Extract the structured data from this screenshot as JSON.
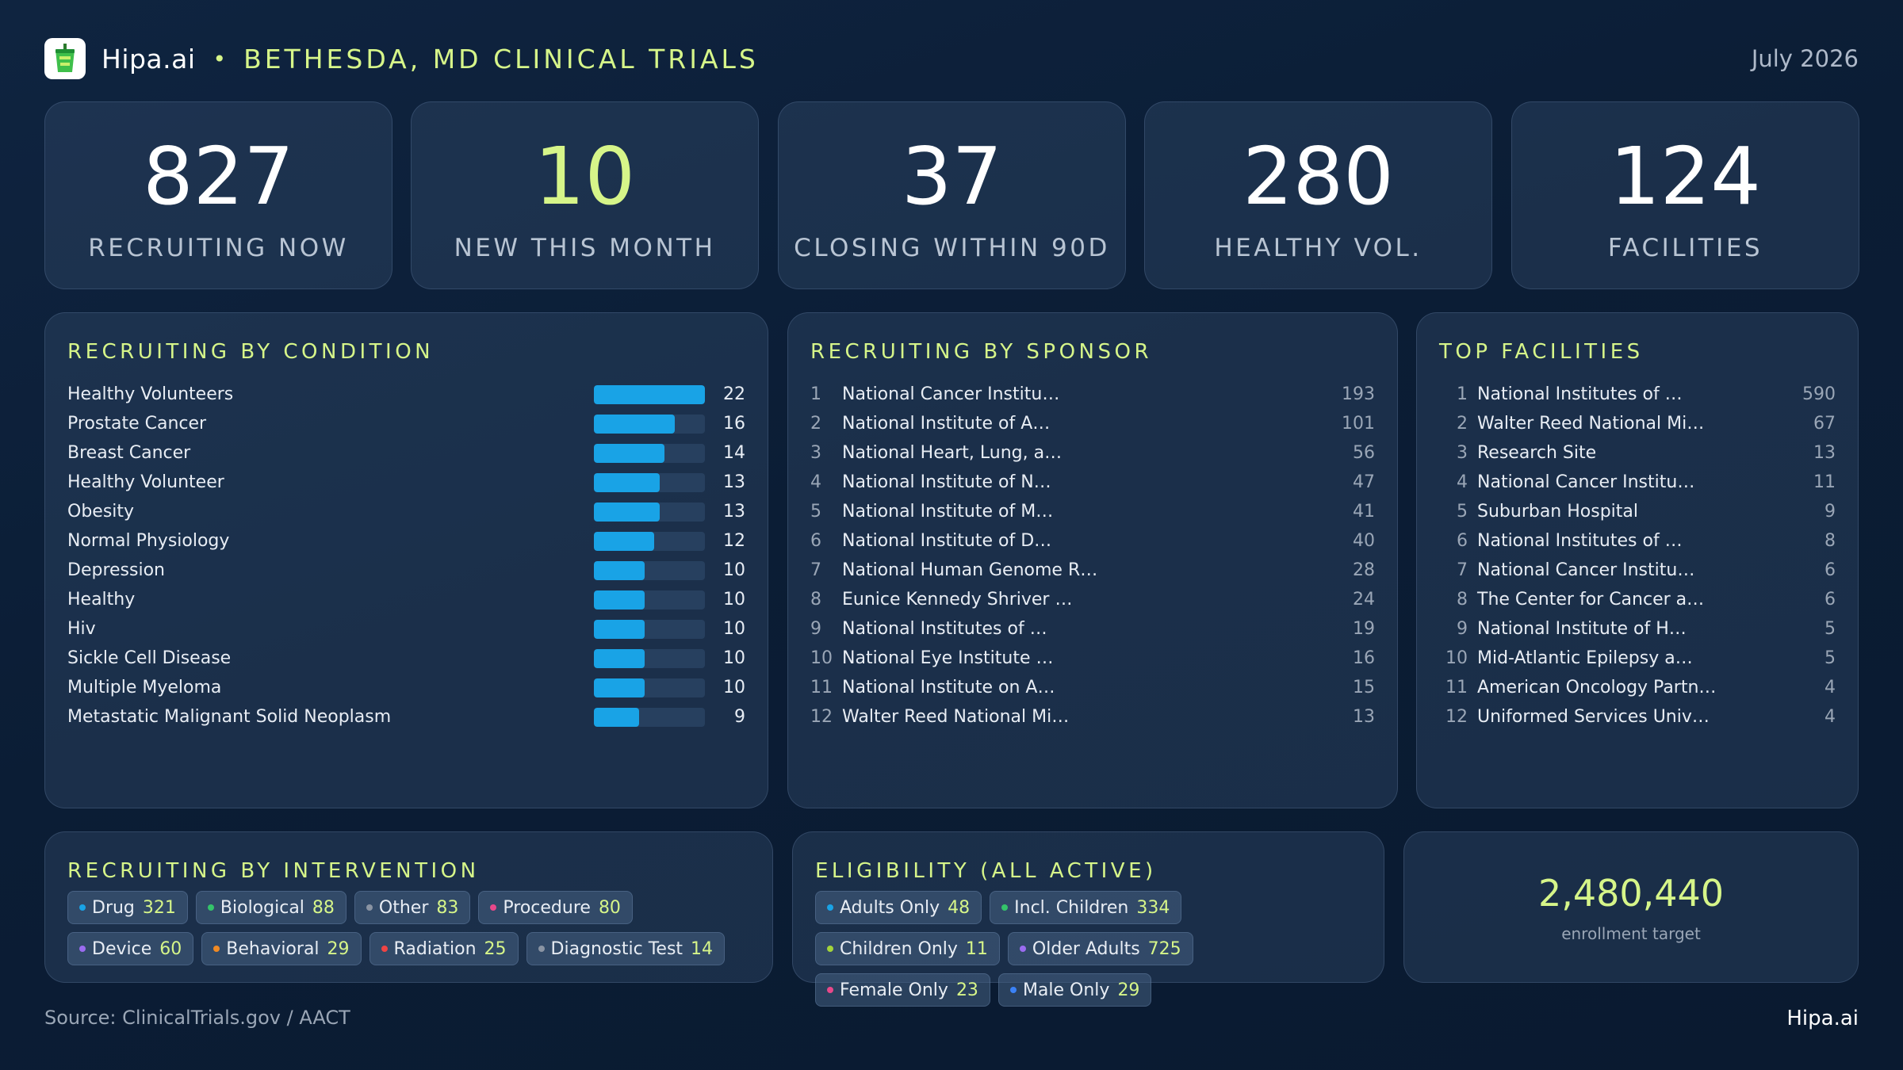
{
  "header": {
    "brand": "Hipa.ai",
    "separator": "•",
    "title": "BETHESDA, MD CLINICAL TRIALS",
    "date": "July 2026",
    "logo_icon": "cup-icon"
  },
  "kpis": [
    {
      "value": "827",
      "label": "RECRUITING NOW"
    },
    {
      "value": "10",
      "label": "NEW THIS MONTH"
    },
    {
      "value": "37",
      "label": "CLOSING WITHIN 90D"
    },
    {
      "value": "280",
      "label": "HEALTHY VOL."
    },
    {
      "value": "124",
      "label": "FACILITIES"
    }
  ],
  "condition": {
    "title": "RECRUITING BY CONDITION",
    "max": 22,
    "items": [
      {
        "name": "Healthy Volunteers",
        "value": "22"
      },
      {
        "name": "Prostate Cancer",
        "value": "16"
      },
      {
        "name": "Breast Cancer",
        "value": "14"
      },
      {
        "name": "Healthy Volunteer",
        "value": "13"
      },
      {
        "name": "Obesity",
        "value": "13"
      },
      {
        "name": "Normal Physiology",
        "value": "12"
      },
      {
        "name": "Depression",
        "value": "10"
      },
      {
        "name": "Healthy",
        "value": "10"
      },
      {
        "name": "Hiv",
        "value": "10"
      },
      {
        "name": "Sickle Cell Disease",
        "value": "10"
      },
      {
        "name": "Multiple Myeloma",
        "value": "10"
      },
      {
        "name": "Metastatic Malignant Solid Neoplasm",
        "value": "9"
      }
    ]
  },
  "sponsor": {
    "title": "RECRUITING BY SPONSOR",
    "items": [
      {
        "rank": "1",
        "name": "National Cancer Institu…",
        "count": "193"
      },
      {
        "rank": "2",
        "name": "National Institute of A…",
        "count": "101"
      },
      {
        "rank": "3",
        "name": "National Heart, Lung, a…",
        "count": "56"
      },
      {
        "rank": "4",
        "name": "National Institute of N…",
        "count": "47"
      },
      {
        "rank": "5",
        "name": "National Institute of M…",
        "count": "41"
      },
      {
        "rank": "6",
        "name": "National Institute of D…",
        "count": "40"
      },
      {
        "rank": "7",
        "name": "National Human Genome R…",
        "count": "28"
      },
      {
        "rank": "8",
        "name": "Eunice Kennedy Shriver …",
        "count": "24"
      },
      {
        "rank": "9",
        "name": "National Institutes of …",
        "count": "19"
      },
      {
        "rank": "10",
        "name": "National Eye Institute …",
        "count": "16"
      },
      {
        "rank": "11",
        "name": "National Institute on A…",
        "count": "15"
      },
      {
        "rank": "12",
        "name": "Walter Reed National Mi…",
        "count": "13"
      }
    ]
  },
  "facilities": {
    "title": "TOP FACILITIES",
    "items": [
      {
        "rank": "1",
        "name": "National Institutes of …",
        "count": "590"
      },
      {
        "rank": "2",
        "name": "Walter Reed National Mi…",
        "count": "67"
      },
      {
        "rank": "3",
        "name": "Research Site",
        "count": "13"
      },
      {
        "rank": "4",
        "name": "National Cancer Institu…",
        "count": "11"
      },
      {
        "rank": "5",
        "name": "Suburban Hospital",
        "count": "9"
      },
      {
        "rank": "6",
        "name": "National Institutes of …",
        "count": "8"
      },
      {
        "rank": "7",
        "name": "National Cancer Institu…",
        "count": "6"
      },
      {
        "rank": "8",
        "name": "The Center for Cancer a…",
        "count": "6"
      },
      {
        "rank": "9",
        "name": "National Institute of H…",
        "count": "5"
      },
      {
        "rank": "10",
        "name": "Mid-Atlantic Epilepsy a…",
        "count": "5"
      },
      {
        "rank": "11",
        "name": "American Oncology Partn…",
        "count": "4"
      },
      {
        "rank": "12",
        "name": "Uniformed Services Univ…",
        "count": "4"
      }
    ]
  },
  "intervention": {
    "title": "RECRUITING BY INTERVENTION",
    "items": [
      {
        "name": "Drug",
        "count": "321",
        "color": "#19a3e6"
      },
      {
        "name": "Biological",
        "count": "88",
        "color": "#34c46a"
      },
      {
        "name": "Other",
        "count": "83",
        "color": "#8a94a3"
      },
      {
        "name": "Procedure",
        "count": "80",
        "color": "#e8488a"
      },
      {
        "name": "Device",
        "count": "60",
        "color": "#9b6cf0"
      },
      {
        "name": "Behavioral",
        "count": "29",
        "color": "#f08a24"
      },
      {
        "name": "Radiation",
        "count": "25",
        "color": "#ef4444"
      },
      {
        "name": "Diagnostic Test",
        "count": "14",
        "color": "#8a94a3"
      }
    ]
  },
  "eligibility": {
    "title": "ELIGIBILITY (ALL ACTIVE)",
    "items": [
      {
        "name": "Adults Only",
        "count": "48",
        "color": "#19a3e6"
      },
      {
        "name": "Incl. Children",
        "count": "334",
        "color": "#34c46a"
      },
      {
        "name": "Children Only",
        "count": "11",
        "color": "#a3d43a"
      },
      {
        "name": "Older Adults",
        "count": "725",
        "color": "#9b6cf0"
      },
      {
        "name": "Female Only",
        "count": "23",
        "color": "#e8488a"
      },
      {
        "name": "Male Only",
        "count": "29",
        "color": "#3b82f6"
      }
    ]
  },
  "enrollment": {
    "value": "2,480,440",
    "label": "enrollment target"
  },
  "footer": {
    "source": "Source: ClinicalTrials.gov / AACT",
    "brand": "Hipa.ai"
  }
}
